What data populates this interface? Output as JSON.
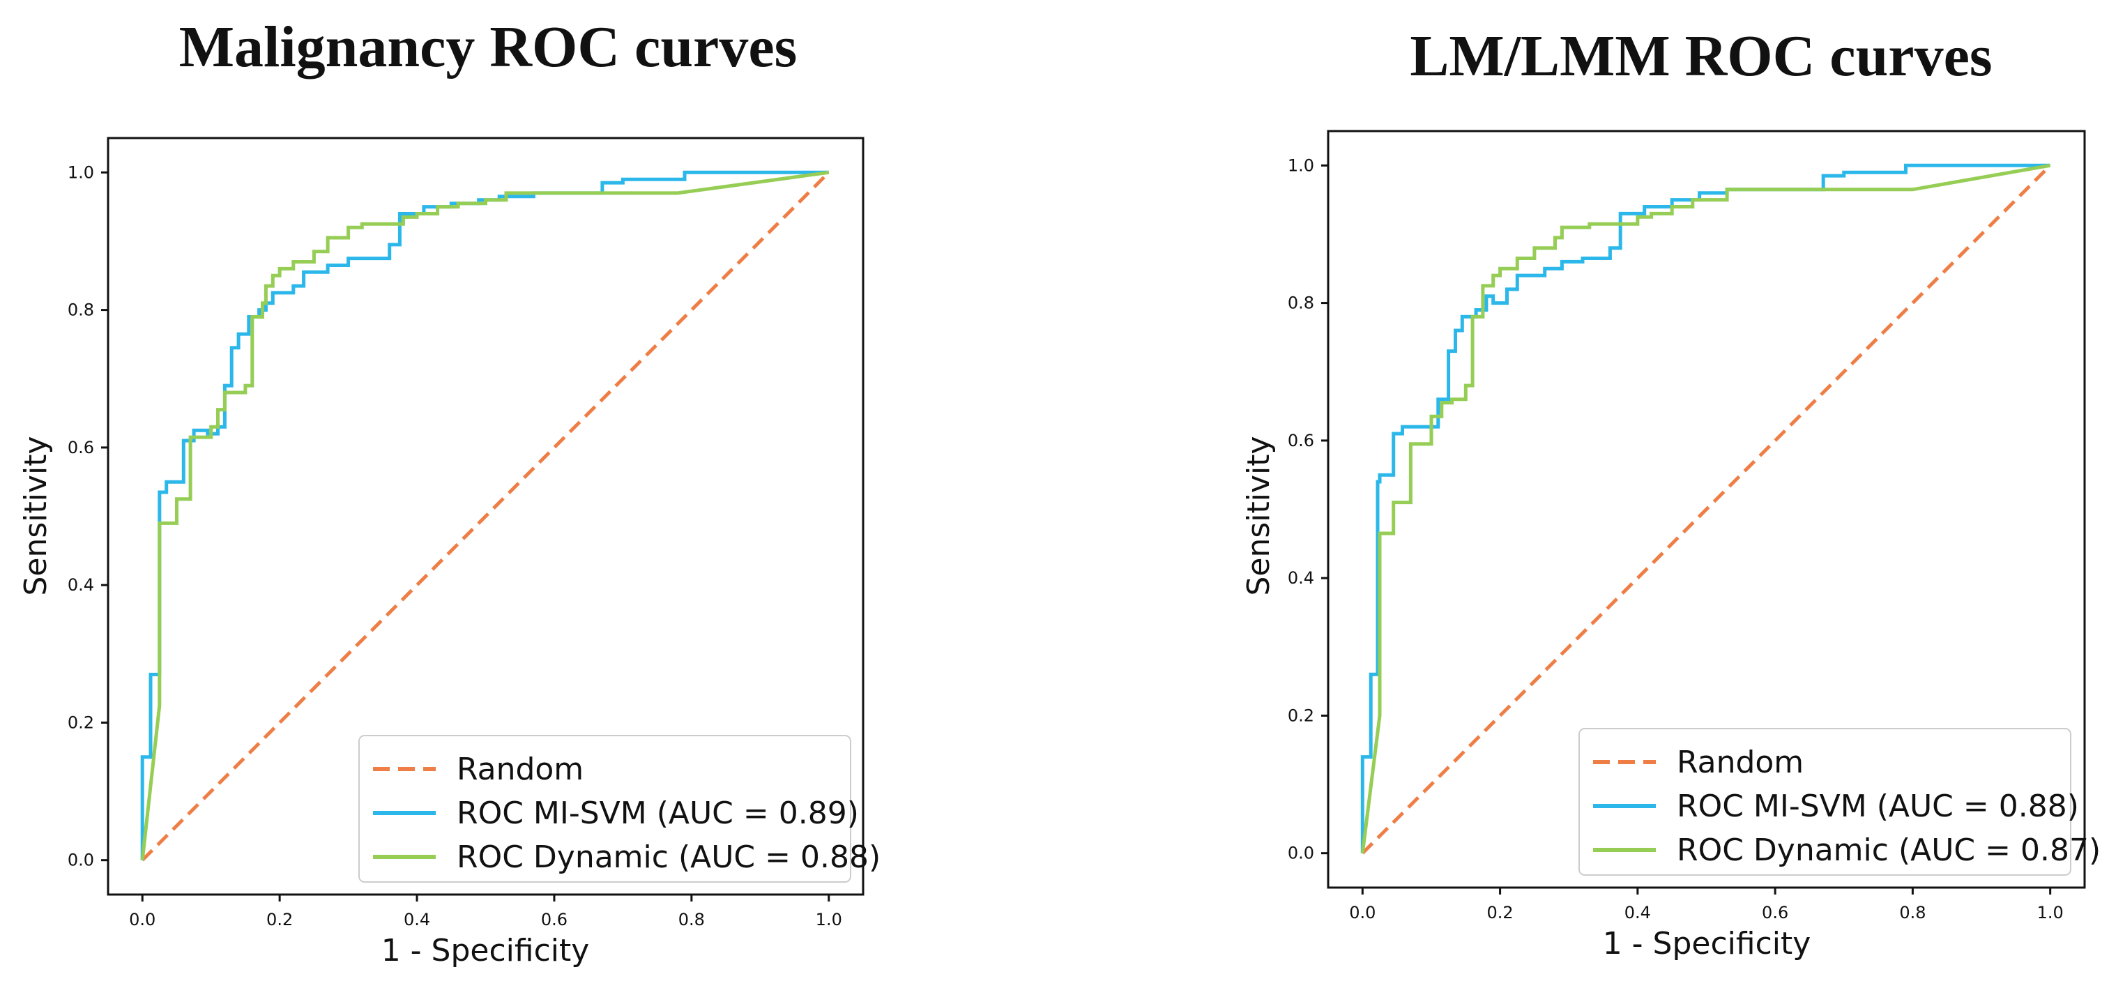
{
  "colors": {
    "random": "#EE7E45",
    "misvm": "#2BB7EA",
    "dynamic": "#95CD55",
    "axis": "#111111",
    "legend_border": "#cccccc"
  },
  "chart_data": [
    {
      "type": "line",
      "title": "Malignancy ROC curves",
      "xlabel": "1 - Specificity",
      "ylabel": "Sensitivity",
      "xlim": [
        -0.05,
        1.05
      ],
      "ylim": [
        -0.05,
        1.05
      ],
      "xticks": [
        0.0,
        0.2,
        0.4,
        0.6,
        0.8,
        1.0
      ],
      "yticks": [
        0.0,
        0.2,
        0.4,
        0.6,
        0.8,
        1.0
      ],
      "xtick_labels": [
        "0.0",
        "0.2",
        "0.4",
        "0.6",
        "0.8",
        "1.0"
      ],
      "ytick_labels": [
        "0.0",
        "0.2",
        "0.4",
        "0.6",
        "0.8",
        "1.0"
      ],
      "grid": false,
      "legend_position": "lower-right",
      "series": [
        {
          "name": "Random",
          "style": "dashed",
          "color_key": "random",
          "x": [
            0,
            1
          ],
          "y": [
            0,
            1
          ]
        },
        {
          "name": "ROC MI-SVM (AUC = 0.89)",
          "style": "step",
          "color_key": "misvm",
          "x": [
            0,
            0,
            0.012,
            0.012,
            0.025,
            0.025,
            0.035,
            0.035,
            0.06,
            0.06,
            0.075,
            0.075,
            0.095,
            0.095,
            0.11,
            0.11,
            0.12,
            0.12,
            0.13,
            0.13,
            0.14,
            0.14,
            0.155,
            0.155,
            0.17,
            0.17,
            0.18,
            0.18,
            0.19,
            0.19,
            0.22,
            0.22,
            0.235,
            0.235,
            0.27,
            0.27,
            0.3,
            0.3,
            0.36,
            0.36,
            0.375,
            0.375,
            0.41,
            0.41,
            0.45,
            0.45,
            0.49,
            0.49,
            0.52,
            0.52,
            0.57,
            0.57,
            0.67,
            0.67,
            0.7,
            0.7,
            0.79,
            0.79,
            1.0
          ],
          "y": [
            0,
            0.15,
            0.15,
            0.27,
            0.27,
            0.535,
            0.535,
            0.55,
            0.55,
            0.61,
            0.61,
            0.625,
            0.625,
            0.62,
            0.62,
            0.63,
            0.63,
            0.69,
            0.69,
            0.745,
            0.745,
            0.765,
            0.765,
            0.79,
            0.79,
            0.8,
            0.8,
            0.81,
            0.81,
            0.825,
            0.825,
            0.835,
            0.835,
            0.855,
            0.855,
            0.865,
            0.865,
            0.875,
            0.875,
            0.895,
            0.895,
            0.94,
            0.94,
            0.95,
            0.95,
            0.955,
            0.955,
            0.96,
            0.96,
            0.965,
            0.965,
            0.97,
            0.97,
            0.985,
            0.985,
            0.99,
            0.99,
            1.0,
            1.0
          ]
        },
        {
          "name": "ROC Dynamic (AUC = 0.88)",
          "style": "step",
          "color_key": "dynamic",
          "x": [
            0,
            0.025,
            0.025,
            0.05,
            0.05,
            0.07,
            0.07,
            0.1,
            0.1,
            0.11,
            0.11,
            0.12,
            0.12,
            0.15,
            0.15,
            0.16,
            0.16,
            0.175,
            0.175,
            0.18,
            0.18,
            0.19,
            0.19,
            0.2,
            0.2,
            0.22,
            0.22,
            0.25,
            0.25,
            0.27,
            0.27,
            0.3,
            0.3,
            0.32,
            0.32,
            0.38,
            0.38,
            0.4,
            0.4,
            0.43,
            0.43,
            0.46,
            0.46,
            0.5,
            0.5,
            0.53,
            0.53,
            0.78,
            1.0
          ],
          "y": [
            0,
            0.225,
            0.49,
            0.49,
            0.525,
            0.525,
            0.615,
            0.615,
            0.63,
            0.63,
            0.655,
            0.655,
            0.68,
            0.68,
            0.69,
            0.69,
            0.79,
            0.79,
            0.81,
            0.81,
            0.835,
            0.835,
            0.85,
            0.85,
            0.86,
            0.86,
            0.87,
            0.87,
            0.885,
            0.885,
            0.905,
            0.905,
            0.92,
            0.92,
            0.925,
            0.925,
            0.935,
            0.935,
            0.94,
            0.94,
            0.95,
            0.95,
            0.955,
            0.955,
            0.96,
            0.96,
            0.97,
            0.97,
            1.0
          ]
        }
      ]
    },
    {
      "type": "line",
      "title": "LM/LMM ROC curves",
      "xlabel": "1 - Specificity",
      "ylabel": "Sensitivity",
      "xlim": [
        -0.05,
        1.05
      ],
      "ylim": [
        -0.05,
        1.05
      ],
      "xticks": [
        0.0,
        0.2,
        0.4,
        0.6,
        0.8,
        1.0
      ],
      "yticks": [
        0.0,
        0.2,
        0.4,
        0.6,
        0.8,
        1.0
      ],
      "xtick_labels": [
        "0.0",
        "0.2",
        "0.4",
        "0.6",
        "0.8",
        "1.0"
      ],
      "ytick_labels": [
        "0.0",
        "0.2",
        "0.4",
        "0.6",
        "0.8",
        "1.0"
      ],
      "grid": false,
      "legend_position": "lower-right",
      "series": [
        {
          "name": "Random",
          "style": "dashed",
          "color_key": "random",
          "x": [
            0,
            1
          ],
          "y": [
            0,
            1
          ]
        },
        {
          "name": "ROC MI-SVM (AUC = 0.88)",
          "style": "step",
          "color_key": "misvm",
          "x": [
            0,
            0,
            0.012,
            0.012,
            0.022,
            0.022,
            0.025,
            0.025,
            0.045,
            0.045,
            0.058,
            0.058,
            0.065,
            0.065,
            0.11,
            0.11,
            0.125,
            0.125,
            0.135,
            0.135,
            0.145,
            0.145,
            0.165,
            0.165,
            0.18,
            0.18,
            0.19,
            0.19,
            0.21,
            0.21,
            0.225,
            0.225,
            0.265,
            0.265,
            0.29,
            0.29,
            0.32,
            0.32,
            0.36,
            0.36,
            0.375,
            0.375,
            0.41,
            0.41,
            0.45,
            0.45,
            0.49,
            0.49,
            0.53,
            0.53,
            0.67,
            0.67,
            0.7,
            0.7,
            0.79,
            0.79,
            1.0
          ],
          "y": [
            0,
            0.14,
            0.14,
            0.26,
            0.26,
            0.54,
            0.54,
            0.55,
            0.55,
            0.61,
            0.61,
            0.62,
            0.62,
            0.62,
            0.62,
            0.66,
            0.66,
            0.73,
            0.73,
            0.76,
            0.76,
            0.78,
            0.78,
            0.79,
            0.79,
            0.81,
            0.81,
            0.8,
            0.8,
            0.82,
            0.82,
            0.84,
            0.84,
            0.85,
            0.85,
            0.86,
            0.86,
            0.865,
            0.865,
            0.88,
            0.88,
            0.93,
            0.93,
            0.94,
            0.94,
            0.95,
            0.95,
            0.96,
            0.96,
            0.965,
            0.965,
            0.985,
            0.985,
            0.99,
            0.99,
            1.0,
            1.0
          ]
        },
        {
          "name": "ROC Dynamic (AUC = 0.87)",
          "style": "step",
          "color_key": "dynamic",
          "x": [
            0,
            0.025,
            0.025,
            0.045,
            0.045,
            0.07,
            0.07,
            0.1,
            0.1,
            0.115,
            0.115,
            0.13,
            0.13,
            0.15,
            0.15,
            0.16,
            0.16,
            0.175,
            0.175,
            0.19,
            0.19,
            0.2,
            0.2,
            0.225,
            0.225,
            0.25,
            0.25,
            0.28,
            0.28,
            0.29,
            0.29,
            0.33,
            0.33,
            0.4,
            0.4,
            0.42,
            0.42,
            0.45,
            0.45,
            0.48,
            0.48,
            0.53,
            0.53,
            0.8,
            1.0
          ],
          "y": [
            0,
            0.2,
            0.465,
            0.465,
            0.51,
            0.51,
            0.595,
            0.595,
            0.635,
            0.635,
            0.655,
            0.655,
            0.66,
            0.66,
            0.68,
            0.68,
            0.78,
            0.78,
            0.825,
            0.825,
            0.84,
            0.84,
            0.85,
            0.85,
            0.865,
            0.865,
            0.88,
            0.88,
            0.895,
            0.895,
            0.91,
            0.91,
            0.915,
            0.915,
            0.925,
            0.925,
            0.93,
            0.93,
            0.94,
            0.94,
            0.95,
            0.95,
            0.965,
            0.965,
            1.0
          ]
        }
      ]
    }
  ]
}
